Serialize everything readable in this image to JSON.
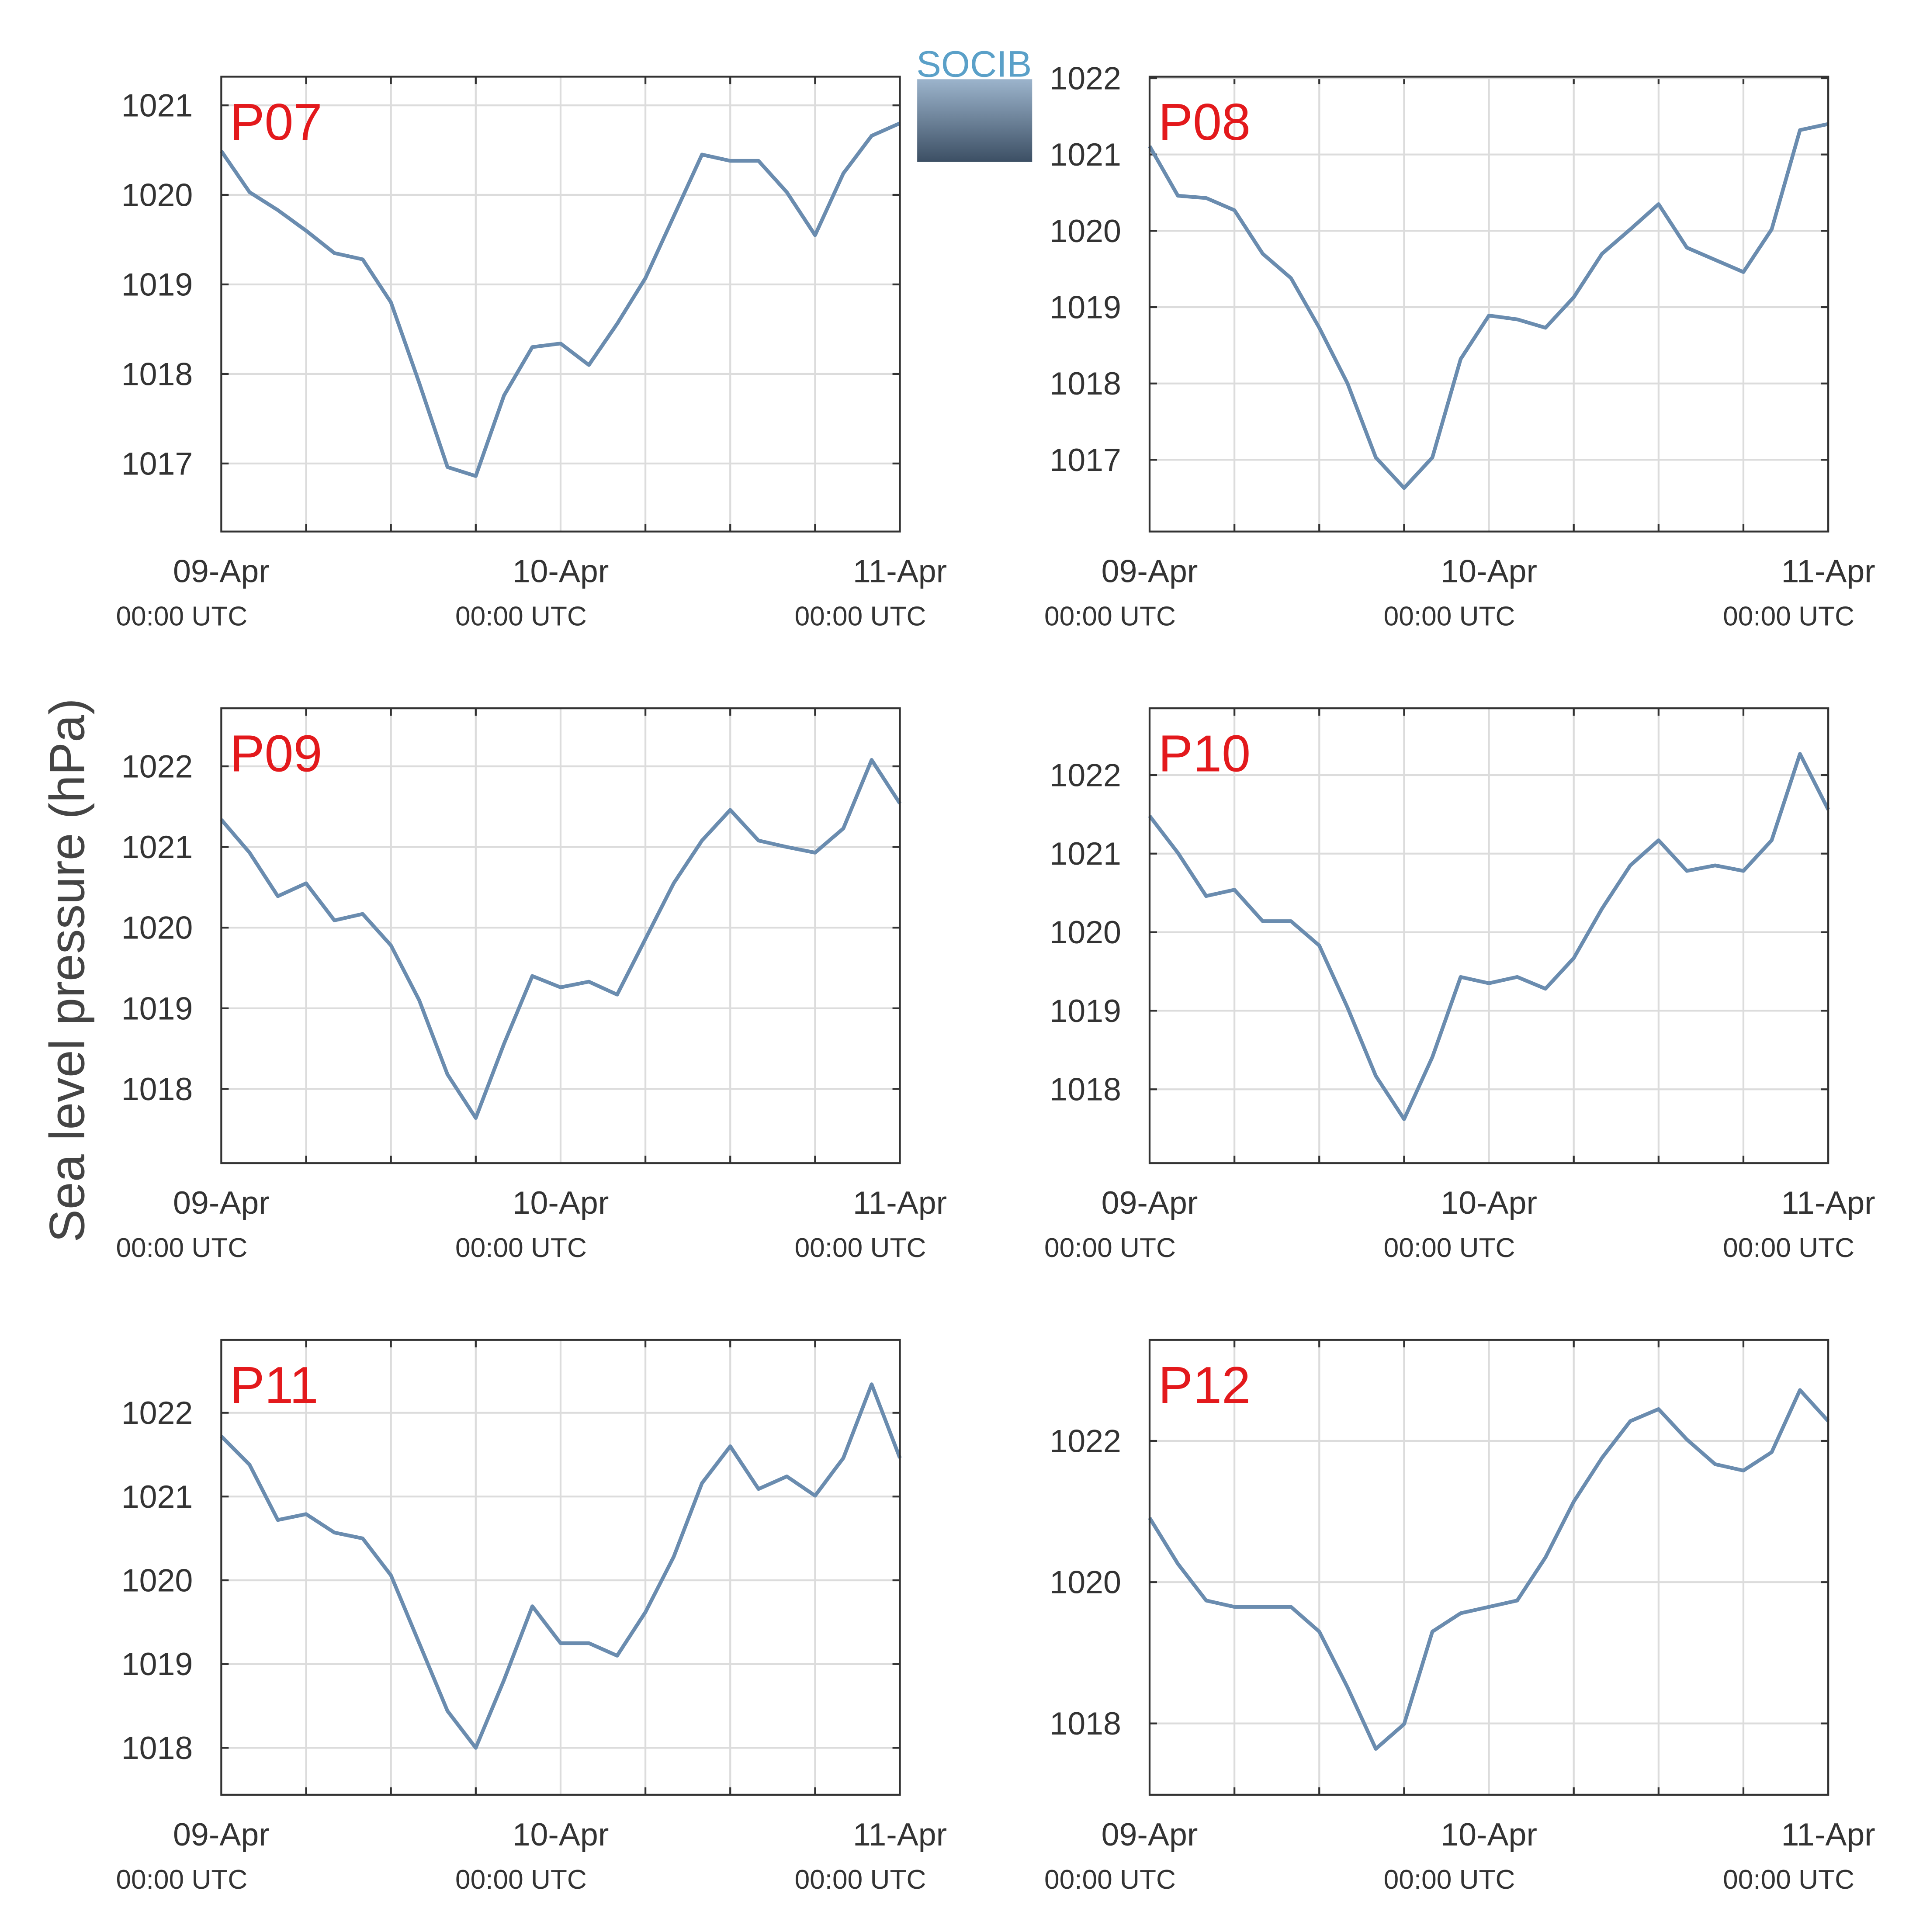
{
  "ylabel": "Sea level pressure (hPa)",
  "logo_text": "SOCIB",
  "chart_data": [
    {
      "type": "line",
      "title": "P07",
      "x": [
        "09-Apr 00:00",
        "09-Apr 02:00",
        "09-Apr 04:00",
        "09-Apr 06:00",
        "09-Apr 08:00",
        "09-Apr 10:00",
        "09-Apr 12:00",
        "09-Apr 14:00",
        "09-Apr 16:00",
        "09-Apr 18:00",
        "09-Apr 20:00",
        "09-Apr 22:00",
        "10-Apr 00:00",
        "10-Apr 02:00",
        "10-Apr 04:00",
        "10-Apr 06:00",
        "10-Apr 08:00",
        "10-Apr 10:00",
        "10-Apr 12:00",
        "10-Apr 14:00",
        "10-Apr 16:00",
        "10-Apr 18:00",
        "10-Apr 20:00",
        "10-Apr 22:00",
        "11-Apr 00:00"
      ],
      "series": [
        {
          "name": "P07",
          "color": "#6a8caf",
          "values": [
            1020.49,
            1020.03,
            1019.83,
            1019.6,
            1019.35,
            1019.28,
            1018.8,
            1017.9,
            1016.96,
            1016.86,
            1017.76,
            1018.3,
            1018.34,
            1018.1,
            1018.56,
            1019.07,
            1019.76,
            1020.45,
            1020.38,
            1020.38,
            1020.03,
            1019.55,
            1020.24,
            1020.66,
            1020.8
          ]
        }
      ],
      "xlim": [
        "09-Apr 00:00",
        "11-Apr 00:00"
      ],
      "xticks": [
        {
          "value": "09-Apr 00:00",
          "label": "09-Apr",
          "label2": "00:00 UTC"
        },
        {
          "value": "10-Apr 00:00",
          "label": "10-Apr",
          "label2": "00:00 UTC"
        },
        {
          "value": "11-Apr 00:00",
          "label": "11-Apr",
          "label2": "00:00 UTC"
        }
      ],
      "xminor": [
        "09-Apr 06:00",
        "09-Apr 12:00",
        "09-Apr 18:00",
        "10-Apr 06:00",
        "10-Apr 12:00",
        "10-Apr 18:00"
      ],
      "ylim": [
        1016.24,
        1021.32
      ],
      "yticks": [
        1017,
        1018,
        1019,
        1020,
        1021
      ],
      "grid": true
    },
    {
      "type": "line",
      "title": "P08",
      "x": [
        "09-Apr 00:00",
        "09-Apr 02:00",
        "09-Apr 04:00",
        "09-Apr 06:00",
        "09-Apr 08:00",
        "09-Apr 10:00",
        "09-Apr 12:00",
        "09-Apr 14:00",
        "09-Apr 16:00",
        "09-Apr 18:00",
        "09-Apr 20:00",
        "09-Apr 22:00",
        "10-Apr 00:00",
        "10-Apr 02:00",
        "10-Apr 04:00",
        "10-Apr 06:00",
        "10-Apr 08:00",
        "10-Apr 10:00",
        "10-Apr 12:00",
        "10-Apr 14:00",
        "10-Apr 16:00",
        "10-Apr 18:00",
        "10-Apr 20:00",
        "10-Apr 22:00",
        "11-Apr 00:00"
      ],
      "series": [
        {
          "name": "P08",
          "color": "#6a8caf",
          "values": [
            1021.11,
            1020.46,
            1020.43,
            1020.27,
            1019.7,
            1019.38,
            1018.73,
            1018.0,
            1017.03,
            1016.63,
            1017.03,
            1018.32,
            1018.89,
            1018.84,
            1018.73,
            1019.13,
            1019.7,
            1020.02,
            1020.35,
            1019.78,
            1019.62,
            1019.46,
            1020.02,
            1021.32,
            1021.4
          ]
        }
      ],
      "xlim": [
        "09-Apr 00:00",
        "11-Apr 00:00"
      ],
      "xticks": [
        {
          "value": "09-Apr 00:00",
          "label": "09-Apr",
          "label2": "00:00 UTC"
        },
        {
          "value": "10-Apr 00:00",
          "label": "10-Apr",
          "label2": "00:00 UTC"
        },
        {
          "value": "11-Apr 00:00",
          "label": "11-Apr",
          "label2": "00:00 UTC"
        }
      ],
      "xminor": [
        "09-Apr 06:00",
        "09-Apr 12:00",
        "09-Apr 18:00",
        "10-Apr 06:00",
        "10-Apr 12:00",
        "10-Apr 18:00"
      ],
      "ylim": [
        1016.06,
        1022.02
      ],
      "yticks": [
        1017,
        1018,
        1019,
        1020,
        1021,
        1022
      ],
      "grid": true
    },
    {
      "type": "line",
      "title": "P09",
      "x": [
        "09-Apr 00:00",
        "09-Apr 02:00",
        "09-Apr 04:00",
        "09-Apr 06:00",
        "09-Apr 08:00",
        "09-Apr 10:00",
        "09-Apr 12:00",
        "09-Apr 14:00",
        "09-Apr 16:00",
        "09-Apr 18:00",
        "09-Apr 20:00",
        "09-Apr 22:00",
        "10-Apr 00:00",
        "10-Apr 02:00",
        "10-Apr 04:00",
        "10-Apr 06:00",
        "10-Apr 08:00",
        "10-Apr 10:00",
        "10-Apr 12:00",
        "10-Apr 14:00",
        "10-Apr 16:00",
        "10-Apr 18:00",
        "10-Apr 20:00",
        "10-Apr 22:00",
        "11-Apr 00:00"
      ],
      "series": [
        {
          "name": "P09",
          "color": "#6a8caf",
          "values": [
            1021.34,
            1020.93,
            1020.39,
            1020.55,
            1020.09,
            1020.17,
            1019.78,
            1019.1,
            1018.18,
            1017.64,
            1018.56,
            1019.4,
            1019.26,
            1019.33,
            1019.17,
            1019.86,
            1020.55,
            1021.08,
            1021.46,
            1021.08,
            1021.0,
            1020.93,
            1021.23,
            1022.08,
            1021.54
          ]
        }
      ],
      "xlim": [
        "09-Apr 00:00",
        "11-Apr 00:00"
      ],
      "xticks": [
        {
          "value": "09-Apr 00:00",
          "label": "09-Apr",
          "label2": "00:00 UTC"
        },
        {
          "value": "10-Apr 00:00",
          "label": "10-Apr",
          "label2": "00:00 UTC"
        },
        {
          "value": "11-Apr 00:00",
          "label": "11-Apr",
          "label2": "00:00 UTC"
        }
      ],
      "xminor": [
        "09-Apr 06:00",
        "09-Apr 12:00",
        "09-Apr 18:00",
        "10-Apr 06:00",
        "10-Apr 12:00",
        "10-Apr 18:00"
      ],
      "ylim": [
        1017.08,
        1022.72
      ],
      "yticks": [
        1018,
        1019,
        1020,
        1021,
        1022
      ],
      "grid": true
    },
    {
      "type": "line",
      "title": "P10",
      "x": [
        "09-Apr 00:00",
        "09-Apr 02:00",
        "09-Apr 04:00",
        "09-Apr 06:00",
        "09-Apr 08:00",
        "09-Apr 10:00",
        "09-Apr 12:00",
        "09-Apr 14:00",
        "09-Apr 16:00",
        "09-Apr 18:00",
        "09-Apr 20:00",
        "09-Apr 22:00",
        "10-Apr 00:00",
        "10-Apr 02:00",
        "10-Apr 04:00",
        "10-Apr 06:00",
        "10-Apr 08:00",
        "10-Apr 10:00",
        "10-Apr 12:00",
        "10-Apr 14:00",
        "10-Apr 16:00",
        "10-Apr 18:00",
        "10-Apr 20:00",
        "10-Apr 22:00",
        "11-Apr 00:00"
      ],
      "series": [
        {
          "name": "P10",
          "color": "#6a8caf",
          "values": [
            1021.48,
            1021.01,
            1020.46,
            1020.54,
            1020.14,
            1020.14,
            1019.83,
            1019.04,
            1018.17,
            1017.62,
            1018.41,
            1019.43,
            1019.35,
            1019.43,
            1019.28,
            1019.67,
            1020.3,
            1020.85,
            1021.17,
            1020.78,
            1020.85,
            1020.78,
            1021.17,
            1022.27,
            1021.56
          ]
        }
      ],
      "xlim": [
        "09-Apr 00:00",
        "11-Apr 00:00"
      ],
      "xticks": [
        {
          "value": "09-Apr 00:00",
          "label": "09-Apr",
          "label2": "00:00 UTC"
        },
        {
          "value": "10-Apr 00:00",
          "label": "10-Apr",
          "label2": "00:00 UTC"
        },
        {
          "value": "11-Apr 00:00",
          "label": "11-Apr",
          "label2": "00:00 UTC"
        }
      ],
      "xminor": [
        "09-Apr 06:00",
        "09-Apr 12:00",
        "09-Apr 18:00",
        "10-Apr 06:00",
        "10-Apr 12:00",
        "10-Apr 18:00"
      ],
      "ylim": [
        1017.06,
        1022.85
      ],
      "yticks": [
        1018,
        1019,
        1020,
        1021,
        1022
      ],
      "grid": true
    },
    {
      "type": "line",
      "title": "P11",
      "x": [
        "09-Apr 00:00",
        "09-Apr 02:00",
        "09-Apr 04:00",
        "09-Apr 06:00",
        "09-Apr 08:00",
        "09-Apr 10:00",
        "09-Apr 12:00",
        "09-Apr 14:00",
        "09-Apr 16:00",
        "09-Apr 18:00",
        "09-Apr 20:00",
        "09-Apr 22:00",
        "10-Apr 00:00",
        "10-Apr 02:00",
        "10-Apr 04:00",
        "10-Apr 06:00",
        "10-Apr 08:00",
        "10-Apr 10:00",
        "10-Apr 12:00",
        "10-Apr 14:00",
        "10-Apr 16:00",
        "10-Apr 18:00",
        "10-Apr 20:00",
        "10-Apr 22:00",
        "11-Apr 00:00"
      ],
      "series": [
        {
          "name": "P11",
          "color": "#6a8caf",
          "values": [
            1021.72,
            1021.38,
            1020.72,
            1020.79,
            1020.57,
            1020.5,
            1020.06,
            1019.25,
            1018.44,
            1018.0,
            1018.81,
            1019.69,
            1019.25,
            1019.25,
            1019.1,
            1019.62,
            1020.28,
            1021.16,
            1021.6,
            1021.09,
            1021.24,
            1021.01,
            1021.46,
            1022.34,
            1021.46
          ]
        }
      ],
      "xlim": [
        "09-Apr 00:00",
        "11-Apr 00:00"
      ],
      "xticks": [
        {
          "value": "09-Apr 00:00",
          "label": "09-Apr",
          "label2": "00:00 UTC"
        },
        {
          "value": "10-Apr 00:00",
          "label": "10-Apr",
          "label2": "00:00 UTC"
        },
        {
          "value": "11-Apr 00:00",
          "label": "11-Apr",
          "label2": "00:00 UTC"
        }
      ],
      "xminor": [
        "09-Apr 06:00",
        "09-Apr 12:00",
        "09-Apr 18:00",
        "10-Apr 06:00",
        "10-Apr 12:00",
        "10-Apr 18:00"
      ],
      "ylim": [
        1017.44,
        1022.87
      ],
      "yticks": [
        1018,
        1019,
        1020,
        1021,
        1022
      ],
      "grid": true
    },
    {
      "type": "line",
      "title": "P12",
      "x": [
        "09-Apr 00:00",
        "09-Apr 02:00",
        "09-Apr 04:00",
        "09-Apr 06:00",
        "09-Apr 08:00",
        "09-Apr 10:00",
        "09-Apr 12:00",
        "09-Apr 14:00",
        "09-Apr 16:00",
        "09-Apr 18:00",
        "09-Apr 20:00",
        "09-Apr 22:00",
        "10-Apr 00:00",
        "10-Apr 02:00",
        "10-Apr 04:00",
        "10-Apr 06:00",
        "10-Apr 08:00",
        "10-Apr 10:00",
        "10-Apr 12:00",
        "10-Apr 14:00",
        "10-Apr 16:00",
        "10-Apr 18:00",
        "10-Apr 20:00",
        "10-Apr 22:00",
        "11-Apr 00:00"
      ],
      "series": [
        {
          "name": "P12",
          "color": "#6a8caf",
          "values": [
            1020.91,
            1020.26,
            1019.74,
            1019.65,
            1019.65,
            1019.65,
            1019.3,
            1018.51,
            1017.64,
            1017.99,
            1019.3,
            1019.56,
            1019.65,
            1019.74,
            1020.35,
            1021.14,
            1021.76,
            1022.28,
            1022.45,
            1022.02,
            1021.67,
            1021.58,
            1021.84,
            1022.72,
            1022.28
          ]
        }
      ],
      "xlim": [
        "09-Apr 00:00",
        "11-Apr 00:00"
      ],
      "xticks": [
        {
          "value": "09-Apr 00:00",
          "label": "09-Apr",
          "label2": "00:00 UTC"
        },
        {
          "value": "10-Apr 00:00",
          "label": "10-Apr",
          "label2": "00:00 UTC"
        },
        {
          "value": "11-Apr 00:00",
          "label": "11-Apr",
          "label2": "00:00 UTC"
        }
      ],
      "xminor": [
        "09-Apr 06:00",
        "09-Apr 12:00",
        "09-Apr 18:00",
        "10-Apr 06:00",
        "10-Apr 12:00",
        "10-Apr 18:00"
      ],
      "ylim": [
        1016.99,
        1023.43
      ],
      "yticks": [
        1018,
        1020,
        1022
      ],
      "grid": true
    }
  ]
}
